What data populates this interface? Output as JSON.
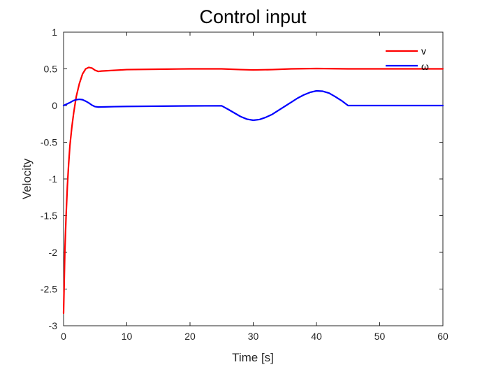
{
  "chart_data": {
    "type": "line",
    "title": "Control input",
    "xlabel": "Time [s]",
    "ylabel": "Velocity",
    "xlim": [
      0,
      60
    ],
    "ylim": [
      -3,
      1
    ],
    "xticks": [
      0,
      10,
      20,
      30,
      40,
      50,
      60
    ],
    "yticks": [
      -3,
      -2.5,
      -2,
      -1.5,
      -1,
      -0.5,
      0,
      0.5,
      1
    ],
    "grid": false,
    "legend_position": "top-right",
    "series": [
      {
        "name": "v",
        "color": "#ff0000",
        "x": [
          0,
          0.2,
          0.4,
          0.6,
          0.8,
          1.0,
          1.3,
          1.6,
          2.0,
          2.5,
          3.0,
          3.5,
          4.0,
          4.5,
          5.0,
          5.5,
          6.0,
          8,
          10,
          15,
          20,
          25,
          28,
          30,
          33,
          36,
          40,
          45,
          50,
          55,
          60
        ],
        "y": [
          -2.83,
          -2.0,
          -1.5,
          -1.1,
          -0.8,
          -0.55,
          -0.3,
          -0.1,
          0.12,
          0.3,
          0.43,
          0.5,
          0.52,
          0.51,
          0.48,
          0.465,
          0.47,
          0.48,
          0.49,
          0.495,
          0.5,
          0.5,
          0.49,
          0.485,
          0.49,
          0.5,
          0.505,
          0.5,
          0.5,
          0.5,
          0.5
        ]
      },
      {
        "name": "ω",
        "color": "#0000ff",
        "x": [
          0,
          0.5,
          1.0,
          1.5,
          2.0,
          2.5,
          3.0,
          3.5,
          4.0,
          4.5,
          5.0,
          5.5,
          8,
          10,
          15,
          20,
          25,
          26,
          27,
          28,
          29,
          30,
          31,
          32,
          33,
          34,
          35,
          36,
          37,
          38,
          39,
          40,
          41,
          42,
          43,
          44,
          45,
          50,
          55,
          60
        ],
        "y": [
          0,
          0.02,
          0.04,
          0.065,
          0.08,
          0.085,
          0.08,
          0.06,
          0.035,
          0.005,
          -0.015,
          -0.02,
          -0.015,
          -0.012,
          -0.008,
          -0.005,
          -0.003,
          -0.05,
          -0.1,
          -0.15,
          -0.185,
          -0.2,
          -0.19,
          -0.16,
          -0.12,
          -0.065,
          -0.01,
          0.045,
          0.1,
          0.145,
          0.18,
          0.2,
          0.195,
          0.17,
          0.12,
          0.065,
          0.0,
          0.0,
          0.0,
          0.0
        ]
      }
    ]
  }
}
